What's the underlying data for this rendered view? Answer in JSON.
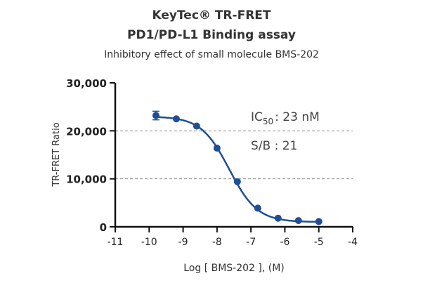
{
  "chart_data": {
    "type": "scatter",
    "title": "KeyTec® TR-FRET",
    "subtitle": "PD1/PD-L1 Binding assay",
    "subtitle2": "Inhibitory effect of small molecule BMS-202",
    "xlabel": "Log [ BMS-202 ], (M)",
    "ylabel": "TR-FRET Ratio",
    "xlim": [
      -11,
      -4
    ],
    "ylim": [
      0,
      30000
    ],
    "xticks": [
      "-11",
      "-10",
      "-9",
      "-8",
      "-7",
      "-6",
      "-5",
      "-4"
    ],
    "yticks": [
      "0",
      "10,000",
      "20,000",
      "30,000"
    ],
    "gridlines_y": [
      10000,
      20000
    ],
    "series": [
      {
        "x": [
          -9.8,
          -9.2,
          -8.6,
          -8.0,
          -7.4,
          -6.8,
          -6.2,
          -5.6,
          -5.0
        ],
        "y": [
          23200,
          22500,
          21000,
          16400,
          9400,
          3900,
          1800,
          1300,
          1100
        ],
        "error": [
          900,
          0,
          0,
          0,
          0,
          0,
          0,
          0,
          0
        ]
      }
    ],
    "fit": {
      "model": "4PL",
      "top": 23000,
      "bottom": 1000,
      "logIC50": -7.64,
      "hill": 1.05
    },
    "annotations": {
      "ic50_label": "IC",
      "ic50_sub": "50",
      "ic50_value": ": 23 nM",
      "sb": "S/B : 21"
    },
    "color": "#1f4e96"
  }
}
